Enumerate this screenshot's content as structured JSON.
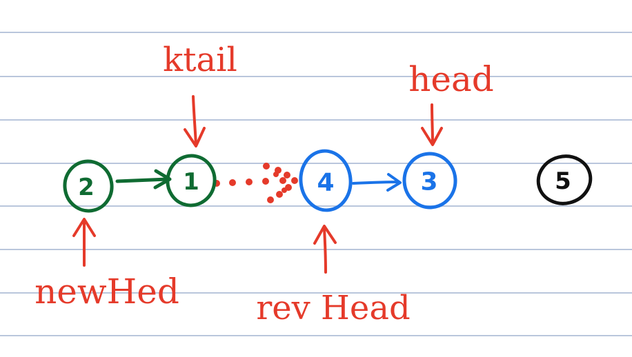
{
  "colors": {
    "ruled_line": "#b9c6dc",
    "green": "#0f6b32",
    "blue": "#1a73e8",
    "black": "#111111",
    "red": "#e53a2a"
  },
  "nodes": [
    {
      "id": "n2",
      "label": "2",
      "color": "green"
    },
    {
      "id": "n1",
      "label": "1",
      "color": "green"
    },
    {
      "id": "n4",
      "label": "4",
      "color": "blue"
    },
    {
      "id": "n3",
      "label": "3",
      "color": "blue"
    },
    {
      "id": "n5",
      "label": "5",
      "color": "black"
    }
  ],
  "labels": {
    "ktail": "ktail",
    "head": "head",
    "newHead": "newHed",
    "revHead": "rev Head"
  }
}
